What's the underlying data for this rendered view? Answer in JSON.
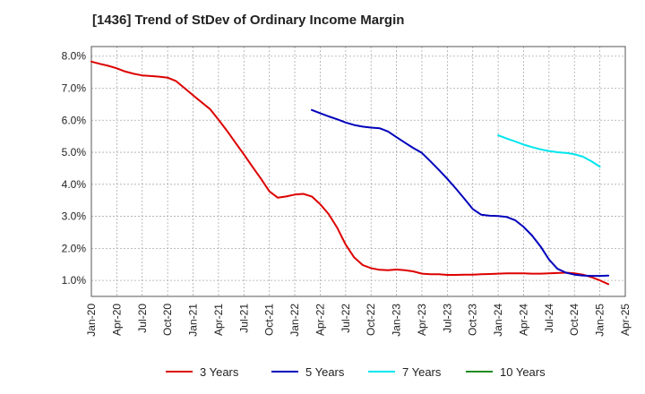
{
  "title": "[1436]  Trend of StDev of Ordinary Income Margin",
  "chart_data": {
    "type": "line",
    "title": "[1436]  Trend of StDev of Ordinary Income Margin",
    "xlabel": "",
    "ylabel": "",
    "x_ticks": [
      "Jan-20",
      "Apr-20",
      "Jul-20",
      "Oct-20",
      "Jan-21",
      "Apr-21",
      "Jul-21",
      "Oct-21",
      "Jan-22",
      "Apr-22",
      "Jul-22",
      "Oct-22",
      "Jan-23",
      "Apr-23",
      "Jul-23",
      "Oct-23",
      "Jan-24",
      "Apr-24",
      "Jul-24",
      "Oct-24",
      "Jan-25",
      "Apr-25"
    ],
    "y_ticks": [
      "1.0%",
      "2.0%",
      "3.0%",
      "4.0%",
      "5.0%",
      "6.0%",
      "7.0%",
      "8.0%"
    ],
    "ylim": [
      0.5,
      8.3
    ],
    "grid": true,
    "legend_position": "bottom",
    "series": [
      {
        "name": "3 Years",
        "color": "#dd0000",
        "points": [
          [
            "2020-01",
            7.83
          ],
          [
            "2020-02",
            7.76
          ],
          [
            "2020-03",
            7.7
          ],
          [
            "2020-04",
            7.62
          ],
          [
            "2020-05",
            7.52
          ],
          [
            "2020-06",
            7.45
          ],
          [
            "2020-07",
            7.4
          ],
          [
            "2020-08",
            7.38
          ],
          [
            "2020-09",
            7.36
          ],
          [
            "2020-10",
            7.33
          ],
          [
            "2020-11",
            7.22
          ],
          [
            "2020-12",
            7.0
          ],
          [
            "2021-01",
            6.78
          ],
          [
            "2021-02",
            6.56
          ],
          [
            "2021-03",
            6.35
          ],
          [
            "2021-04",
            6.02
          ],
          [
            "2021-05",
            5.67
          ],
          [
            "2021-06",
            5.3
          ],
          [
            "2021-07",
            4.93
          ],
          [
            "2021-08",
            4.55
          ],
          [
            "2021-09",
            4.18
          ],
          [
            "2021-10",
            3.78
          ],
          [
            "2021-11",
            3.58
          ],
          [
            "2021-12",
            3.62
          ],
          [
            "2022-01",
            3.68
          ],
          [
            "2022-02",
            3.7
          ],
          [
            "2022-03",
            3.62
          ],
          [
            "2022-04",
            3.38
          ],
          [
            "2022-05",
            3.07
          ],
          [
            "2022-06",
            2.65
          ],
          [
            "2022-07",
            2.12
          ],
          [
            "2022-08",
            1.72
          ],
          [
            "2022-09",
            1.48
          ],
          [
            "2022-10",
            1.38
          ],
          [
            "2022-11",
            1.33
          ],
          [
            "2022-12",
            1.32
          ],
          [
            "2023-01",
            1.34
          ],
          [
            "2023-02",
            1.32
          ],
          [
            "2023-03",
            1.28
          ],
          [
            "2023-04",
            1.21
          ],
          [
            "2023-05",
            1.19
          ],
          [
            "2023-06",
            1.19
          ],
          [
            "2023-07",
            1.17
          ],
          [
            "2023-08",
            1.17
          ],
          [
            "2023-09",
            1.18
          ],
          [
            "2023-10",
            1.18
          ],
          [
            "2023-11",
            1.19
          ],
          [
            "2023-12",
            1.2
          ],
          [
            "2024-01",
            1.21
          ],
          [
            "2024-02",
            1.22
          ],
          [
            "2024-03",
            1.22
          ],
          [
            "2024-04",
            1.22
          ],
          [
            "2024-05",
            1.21
          ],
          [
            "2024-06",
            1.21
          ],
          [
            "2024-07",
            1.22
          ],
          [
            "2024-08",
            1.23
          ],
          [
            "2024-09",
            1.24
          ],
          [
            "2024-10",
            1.22
          ],
          [
            "2024-11",
            1.18
          ],
          [
            "2024-12",
            1.1
          ],
          [
            "2025-01",
            1.0
          ],
          [
            "2025-02",
            0.88
          ]
        ]
      },
      {
        "name": "5 Years",
        "color": "#0000bb",
        "points": [
          [
            "2022-03",
            6.32
          ],
          [
            "2022-04",
            6.22
          ],
          [
            "2022-05",
            6.12
          ],
          [
            "2022-06",
            6.03
          ],
          [
            "2022-07",
            5.93
          ],
          [
            "2022-08",
            5.85
          ],
          [
            "2022-09",
            5.8
          ],
          [
            "2022-10",
            5.77
          ],
          [
            "2022-11",
            5.75
          ],
          [
            "2022-12",
            5.65
          ],
          [
            "2023-01",
            5.47
          ],
          [
            "2023-02",
            5.3
          ],
          [
            "2023-03",
            5.13
          ],
          [
            "2023-04",
            4.98
          ],
          [
            "2023-05",
            4.72
          ],
          [
            "2023-06",
            4.45
          ],
          [
            "2023-07",
            4.17
          ],
          [
            "2023-08",
            3.87
          ],
          [
            "2023-09",
            3.55
          ],
          [
            "2023-10",
            3.23
          ],
          [
            "2023-11",
            3.05
          ],
          [
            "2023-12",
            3.02
          ],
          [
            "2024-01",
            3.01
          ],
          [
            "2024-02",
            2.98
          ],
          [
            "2024-03",
            2.88
          ],
          [
            "2024-04",
            2.67
          ],
          [
            "2024-05",
            2.4
          ],
          [
            "2024-06",
            2.06
          ],
          [
            "2024-07",
            1.65
          ],
          [
            "2024-08",
            1.36
          ],
          [
            "2024-09",
            1.24
          ],
          [
            "2024-10",
            1.18
          ],
          [
            "2024-11",
            1.15
          ],
          [
            "2024-12",
            1.14
          ],
          [
            "2025-01",
            1.14
          ],
          [
            "2025-02",
            1.15
          ]
        ]
      },
      {
        "name": "7 Years",
        "color": "#00e5ee",
        "points": [
          [
            "2024-01",
            5.53
          ],
          [
            "2024-02",
            5.43
          ],
          [
            "2024-03",
            5.34
          ],
          [
            "2024-04",
            5.24
          ],
          [
            "2024-05",
            5.16
          ],
          [
            "2024-06",
            5.09
          ],
          [
            "2024-07",
            5.04
          ],
          [
            "2024-08",
            5.0
          ],
          [
            "2024-09",
            4.98
          ],
          [
            "2024-10",
            4.94
          ],
          [
            "2024-11",
            4.86
          ],
          [
            "2024-12",
            4.72
          ],
          [
            "2025-01",
            4.55
          ]
        ]
      },
      {
        "name": "10 Years",
        "color": "#228b22",
        "points": []
      }
    ]
  }
}
